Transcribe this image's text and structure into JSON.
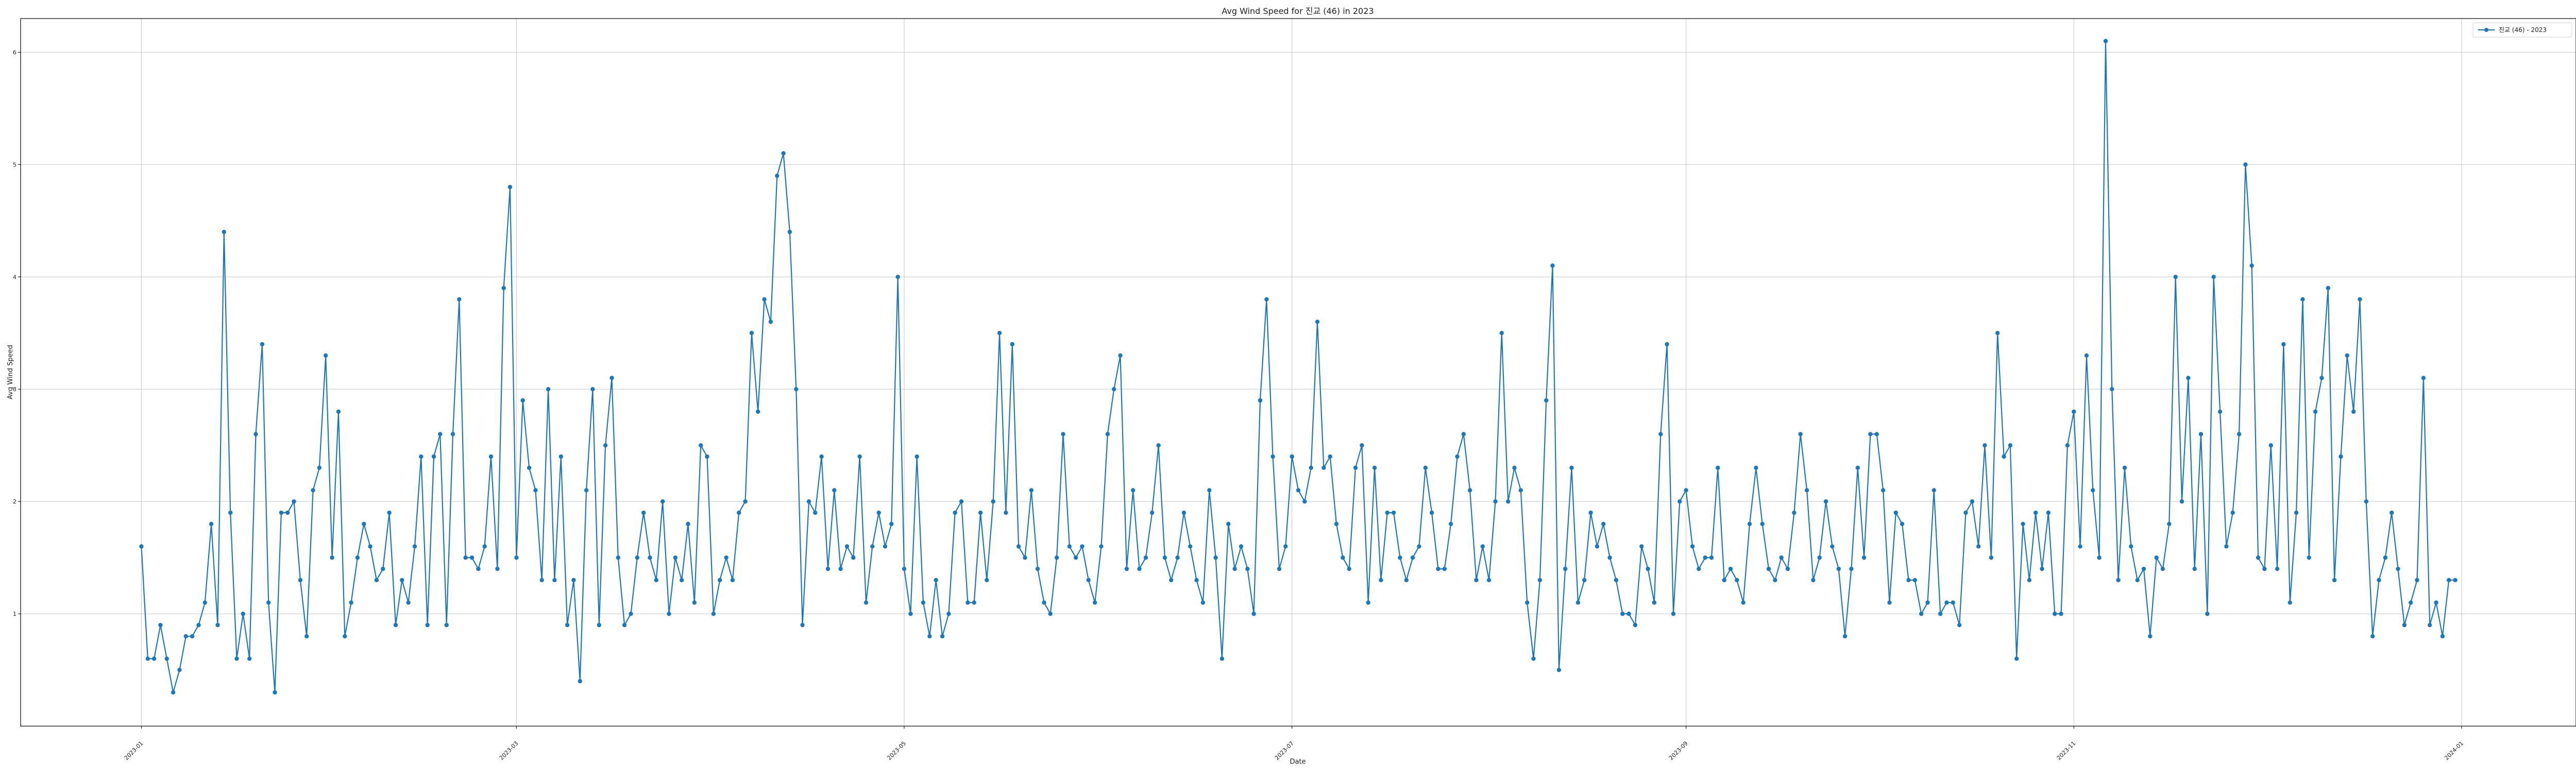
{
  "chart_data": {
    "type": "line",
    "title": "Avg Wind Speed for 진교 (46) in 2023",
    "xlabel": "Date",
    "ylabel": "Avg Wind Speed",
    "x_start": "2023-01-01",
    "x_end": "2023-12-31",
    "xlim": [
      "2022-12-13",
      "2024-01-19"
    ],
    "ylim": [
      0,
      6.3
    ],
    "x_ticks": [
      "2023-01",
      "2023-03",
      "2023-05",
      "2023-07",
      "2023-09",
      "2023-11",
      "2024-01"
    ],
    "y_ticks": [
      1,
      2,
      3,
      4,
      5,
      6
    ],
    "grid": true,
    "legend": "top-right",
    "series": [
      {
        "name": "진교 (46) - 2023",
        "color": "#1f77b4",
        "values": [
          1.6,
          0.6,
          0.6,
          0.9,
          0.6,
          0.3,
          0.5,
          0.8,
          0.8,
          0.9,
          1.1,
          1.8,
          0.9,
          4.4,
          1.9,
          0.6,
          1.0,
          0.6,
          2.6,
          3.4,
          1.1,
          0.3,
          1.9,
          1.9,
          2.0,
          1.3,
          0.8,
          2.1,
          2.3,
          3.3,
          1.5,
          2.8,
          0.8,
          1.1,
          1.5,
          1.8,
          1.6,
          1.3,
          1.4,
          1.9,
          0.9,
          1.3,
          1.1,
          1.6,
          2.4,
          0.9,
          2.4,
          2.6,
          0.9,
          2.6,
          3.8,
          1.5,
          1.5,
          1.4,
          1.6,
          2.4,
          1.4,
          3.9,
          4.8,
          1.5,
          2.9,
          2.3,
          2.1,
          1.3,
          3.0,
          1.3,
          2.4,
          0.9,
          1.3,
          0.4,
          2.1,
          3.0,
          0.9,
          2.5,
          3.1,
          1.5,
          0.9,
          1.0,
          1.5,
          1.9,
          1.5,
          1.3,
          2.0,
          1.0,
          1.5,
          1.3,
          1.8,
          1.1,
          2.5,
          2.4,
          1.0,
          1.3,
          1.5,
          1.3,
          1.9,
          2.0,
          3.5,
          2.8,
          3.8,
          3.6,
          4.9,
          5.1,
          4.4,
          3.0,
          0.9,
          2.0,
          1.9,
          2.4,
          1.4,
          2.1,
          1.4,
          1.6,
          1.5,
          2.4,
          1.1,
          1.6,
          1.9,
          1.6,
          1.8,
          4.0,
          1.4,
          1.0,
          2.4,
          1.1,
          0.8,
          1.3,
          0.8,
          1.0,
          1.9,
          2.0,
          1.1,
          1.1,
          1.9,
          1.3,
          2.0,
          3.5,
          1.9,
          3.4,
          1.6,
          1.5,
          2.1,
          1.4,
          1.1,
          1.0,
          1.5,
          2.6,
          1.6,
          1.5,
          1.6,
          1.3,
          1.1,
          1.6,
          2.6,
          3.0,
          3.3,
          1.4,
          2.1,
          1.4,
          1.5,
          1.9,
          2.5,
          1.5,
          1.3,
          1.5,
          1.9,
          1.6,
          1.3,
          1.1,
          2.1,
          1.5,
          0.6,
          1.8,
          1.4,
          1.6,
          1.4,
          1.0,
          2.9,
          3.8,
          2.4,
          1.4,
          1.6,
          2.4,
          2.1,
          2.0,
          2.3,
          3.6,
          2.3,
          2.4,
          1.8,
          1.5,
          1.4,
          2.3,
          2.5,
          1.1,
          2.3,
          1.3,
          1.9,
          1.9,
          1.5,
          1.3,
          1.5,
          1.6,
          2.3,
          1.9,
          1.4,
          1.4,
          1.8,
          2.4,
          2.6,
          2.1,
          1.3,
          1.6,
          1.3,
          2.0,
          3.5,
          2.0,
          2.3,
          2.1,
          1.1,
          0.6,
          1.3,
          2.9,
          4.1,
          0.5,
          1.4,
          2.3,
          1.1,
          1.3,
          1.9,
          1.6,
          1.8,
          1.5,
          1.3,
          1.0,
          1.0,
          0.9,
          1.6,
          1.4,
          1.1,
          2.6,
          3.4,
          1.0,
          2.0,
          2.1,
          1.6,
          1.4,
          1.5,
          1.5,
          2.3,
          1.3,
          1.4,
          1.3,
          1.1,
          1.8,
          2.3,
          1.8,
          1.4,
          1.3,
          1.5,
          1.4,
          1.9,
          2.6,
          2.1,
          1.3,
          1.5,
          2.0,
          1.6,
          1.4,
          0.8,
          1.4,
          2.3,
          1.5,
          2.6,
          2.6,
          2.1,
          1.1,
          1.9,
          1.8,
          1.3,
          1.3,
          1.0,
          1.1,
          2.1,
          1.0,
          1.1,
          1.1,
          0.9,
          1.9,
          2.0,
          1.6,
          2.5,
          1.5,
          3.5,
          2.4,
          2.5,
          0.6,
          1.8,
          1.3,
          1.9,
          1.4,
          1.9,
          1.0,
          1.0,
          2.5,
          2.8,
          1.6,
          3.3,
          2.1,
          1.5,
          6.1,
          3.0,
          1.3,
          2.3,
          1.6,
          1.3,
          1.4,
          0.8,
          1.5,
          1.4,
          1.8,
          4.0,
          2.0,
          3.1,
          1.4,
          2.6,
          1.0,
          4.0,
          2.8,
          1.6,
          1.9,
          2.6,
          5.0,
          4.1,
          1.5,
          1.4,
          2.5,
          1.4,
          3.4,
          1.1,
          1.9,
          3.8,
          1.5,
          2.8,
          3.1,
          3.9,
          1.3,
          2.4,
          3.3,
          2.8,
          3.8,
          2.0,
          0.8,
          1.3,
          1.5,
          1.9,
          1.4,
          0.9,
          1.1,
          1.3,
          3.1,
          0.9,
          1.1,
          0.8,
          1.3,
          1.3
        ]
      }
    ]
  }
}
